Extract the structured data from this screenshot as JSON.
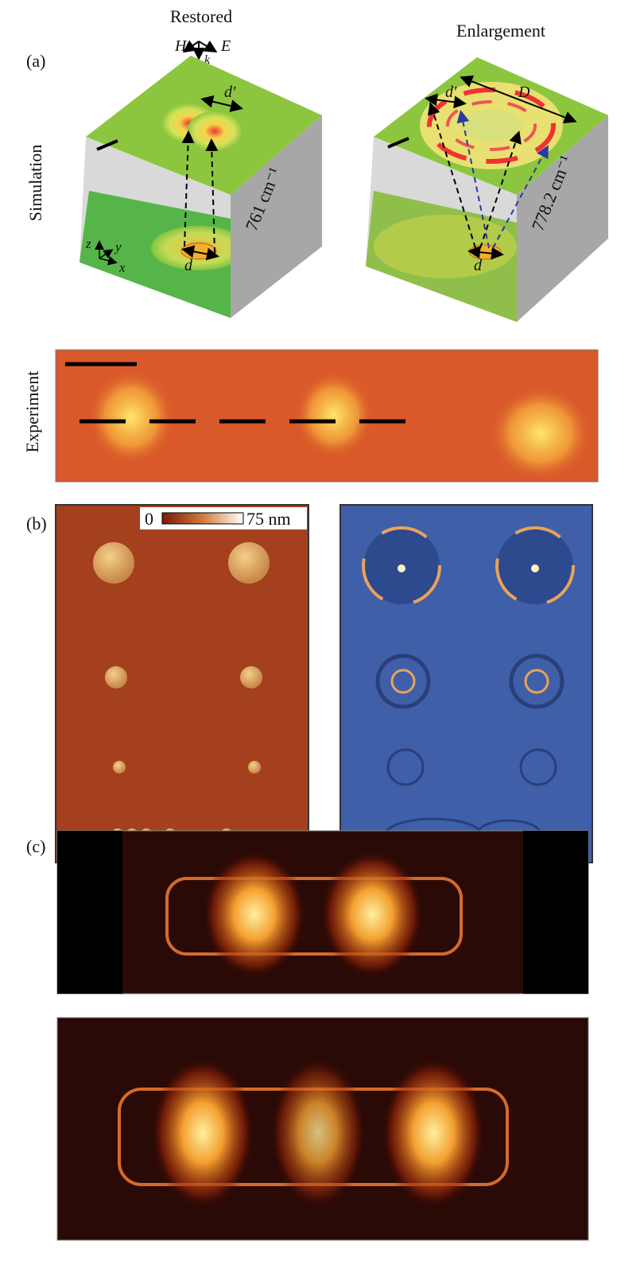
{
  "panels": {
    "a": {
      "label": "(a)",
      "row_labels": [
        "Simulation",
        "Experiment"
      ],
      "restored": {
        "title": "Restored",
        "axes": [
          "H",
          "E",
          "k"
        ],
        "d_prime": "d′",
        "d": "d",
        "frequency": "761 cm⁻¹",
        "coords": [
          "z",
          "y",
          "x"
        ]
      },
      "enlargement": {
        "title": "Enlargement",
        "d_prime": "d′",
        "big_d": "D",
        "d": "d",
        "frequency": "778.2 cm⁻¹"
      }
    },
    "b": {
      "label": "(b)",
      "colorbar": {
        "min": "0",
        "max": "75 nm"
      }
    },
    "c": {
      "label": "(c)"
    }
  }
}
